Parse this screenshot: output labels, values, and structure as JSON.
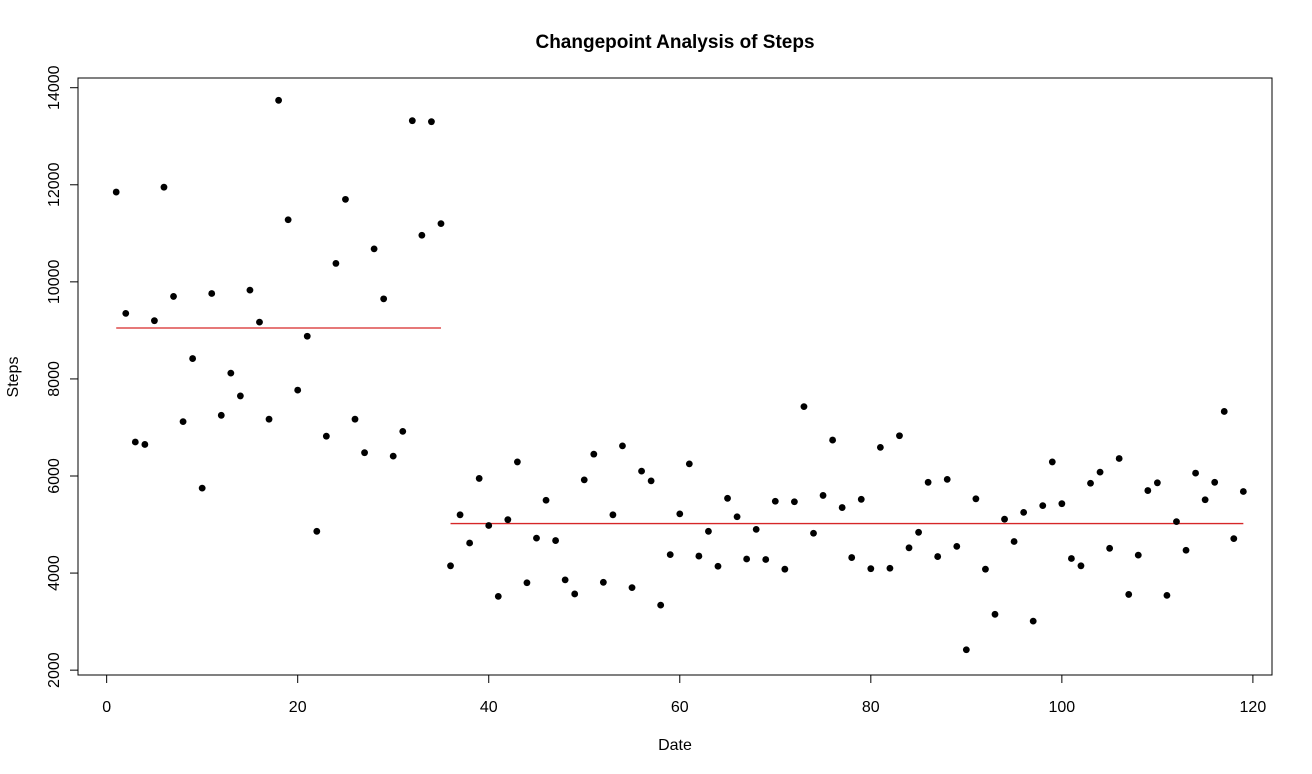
{
  "chart_data": {
    "type": "scatter",
    "title": "Changepoint Analysis of Steps",
    "xlabel": "Date",
    "ylabel": "Steps",
    "xlim": [
      -3,
      122
    ],
    "ylim": [
      1900,
      14200
    ],
    "x_ticks": [
      0,
      20,
      40,
      60,
      80,
      100,
      120
    ],
    "y_ticks": [
      2000,
      4000,
      6000,
      8000,
      10000,
      12000,
      14000
    ],
    "grid": false,
    "point_color": "#000000",
    "segment_color": "#d62728",
    "series": [
      {
        "x": [
          1,
          2,
          3,
          4,
          5,
          6,
          7,
          8,
          9,
          10,
          11,
          12,
          13,
          14,
          15,
          16,
          17,
          18,
          19,
          20,
          21,
          22,
          23,
          24,
          25,
          26,
          27,
          28,
          29,
          30,
          31,
          32,
          33,
          34,
          35,
          36,
          37,
          38,
          39,
          40,
          41,
          42,
          43,
          44,
          45,
          46,
          47,
          48,
          49,
          50,
          51,
          52,
          53,
          54,
          55,
          56,
          57,
          58,
          59,
          60,
          61,
          62,
          63,
          64,
          65,
          66,
          67,
          68,
          69,
          70,
          71,
          72,
          73,
          74,
          75,
          76,
          77,
          78,
          79,
          80,
          81,
          82,
          83,
          84,
          85,
          86,
          87,
          88,
          89,
          90,
          91,
          92,
          93,
          94,
          95,
          96,
          97,
          98,
          99,
          100,
          101,
          102,
          103,
          104,
          105,
          106,
          107,
          108,
          109,
          110,
          111,
          112,
          113,
          114,
          115,
          116,
          117,
          118,
          119
        ],
        "y": [
          11850,
          9350,
          6700,
          6650,
          9200,
          11950,
          9700,
          7120,
          8420,
          5750,
          9760,
          7250,
          8120,
          7650,
          9830,
          9170,
          7170,
          13740,
          11280,
          7770,
          8880,
          4860,
          6820,
          10380,
          11700,
          7170,
          6480,
          10680,
          9650,
          6410,
          6920,
          13320,
          10960,
          13300,
          11200,
          4150,
          5200,
          4620,
          5950,
          4980,
          3520,
          5100,
          6290,
          3800,
          4720,
          5500,
          4670,
          3860,
          3570,
          5920,
          6450,
          3810,
          5200,
          6620,
          3700,
          6100,
          5900,
          3340,
          4380,
          5220,
          6250,
          4350,
          4860,
          4140,
          5540,
          5160,
          4290,
          4900,
          4280,
          5480,
          4080,
          5470,
          7430,
          4820,
          5600,
          6740,
          5350,
          4320,
          5520,
          4090,
          6590,
          4100,
          6830,
          4520,
          4840,
          5870,
          4340,
          5930,
          4550,
          2420,
          5530,
          4080,
          3150,
          5110,
          4650,
          5250,
          3010,
          5390,
          6290,
          5430,
          4300,
          4150,
          5850,
          6080,
          4510,
          6360,
          3560,
          4370,
          5700,
          5860,
          3540,
          5060,
          4470,
          6060,
          5510,
          5870,
          7330,
          4710,
          5680
        ]
      }
    ],
    "segments": [
      {
        "x": [
          1,
          35
        ],
        "y": 9050
      },
      {
        "x": [
          36,
          119
        ],
        "y": 5020
      }
    ]
  }
}
